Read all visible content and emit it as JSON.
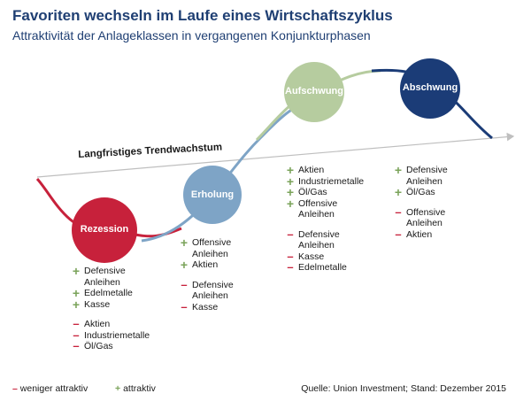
{
  "title": "Favoriten wechseln im Laufe eines Wirtschaftszyklus",
  "subtitle": "Attraktivität der Anlageklassen in vergangenen Konjunkturphasen",
  "trend_label": "Langfristiges Trendwachstum",
  "phases": [
    {
      "label": "Rezession",
      "color": "#c7213b",
      "attractive": [
        "Defensive\nAnleihen",
        "Edelmetalle",
        "Kasse"
      ],
      "less_attractive": [
        "Aktien",
        "Industriemetalle",
        "Öl/Gas"
      ]
    },
    {
      "label": "Erholung",
      "color": "#7ea4c6",
      "attractive": [
        "Offensive\nAnleihen",
        "Aktien"
      ],
      "less_attractive": [
        "Defensive\nAnleihen",
        "Kasse"
      ]
    },
    {
      "label": "Aufschwung",
      "color": "#b6cc9f",
      "attractive": [
        "Aktien",
        "Industriemetalle",
        "Öl/Gas",
        "Offensive\nAnleihen"
      ],
      "less_attractive": [
        "Defensive\nAnleihen",
        "Kasse",
        "Edelmetalle"
      ]
    },
    {
      "label": "Abschwung",
      "color": "#1b3c77",
      "attractive": [
        "Defensive\nAnleihen",
        "Öl/Gas"
      ],
      "less_attractive": [
        "Offensive\nAnleihen",
        "Aktien"
      ]
    }
  ],
  "legend": {
    "minus_label": "weniger attraktiv",
    "plus_label": "attraktiv"
  },
  "source": "Quelle: Union Investment; Stand: Dezember 2015",
  "colors": {
    "title": "#1f3f73",
    "plus": "#7aa35a",
    "minus": "#c7213b",
    "trend": "#bfbfbf"
  }
}
